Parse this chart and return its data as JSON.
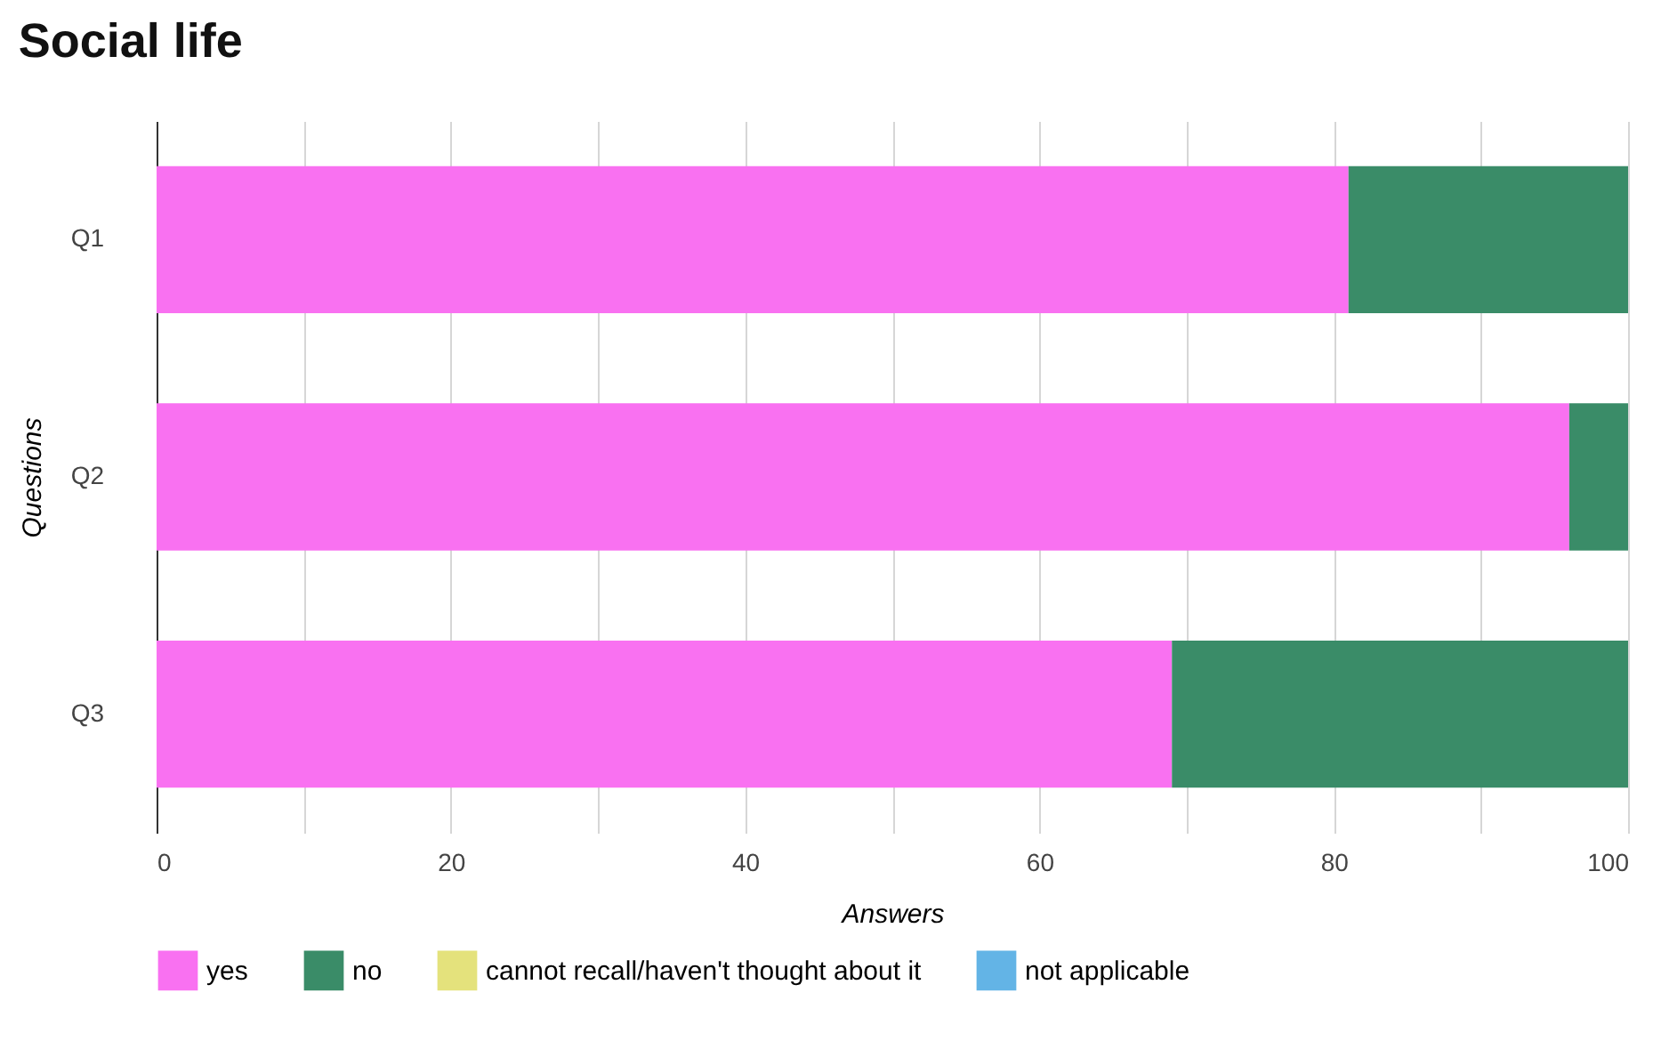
{
  "chart_data": {
    "type": "bar",
    "title": "Social life",
    "xlabel": "Answers",
    "ylabel": "Questions",
    "orientation": "horizontal",
    "stacked": true,
    "categories": [
      "Q1",
      "Q2",
      "Q3"
    ],
    "series": [
      {
        "name": "yes",
        "color": "#f971f1",
        "values": [
          81,
          96,
          69
        ]
      },
      {
        "name": "no",
        "color": "#3a8c68",
        "values": [
          19,
          4,
          31
        ]
      },
      {
        "name": "cannot recall/haven't thought about it",
        "color": "#e4e27c",
        "values": [
          0,
          0,
          0
        ]
      },
      {
        "name": "not applicable",
        "color": "#63b4e6",
        "values": [
          0,
          0,
          0
        ]
      }
    ],
    "xlim": [
      0,
      100
    ],
    "xticks": [
      0,
      {
        "value": 10,
        "label": null
      },
      20,
      {
        "value": 30,
        "label": null
      },
      40,
      {
        "value": 50,
        "label": null
      },
      60,
      {
        "value": 70,
        "label": null
      },
      80,
      {
        "value": 90,
        "label": null
      },
      100
    ],
    "grid": "x",
    "legend": "bottom"
  }
}
